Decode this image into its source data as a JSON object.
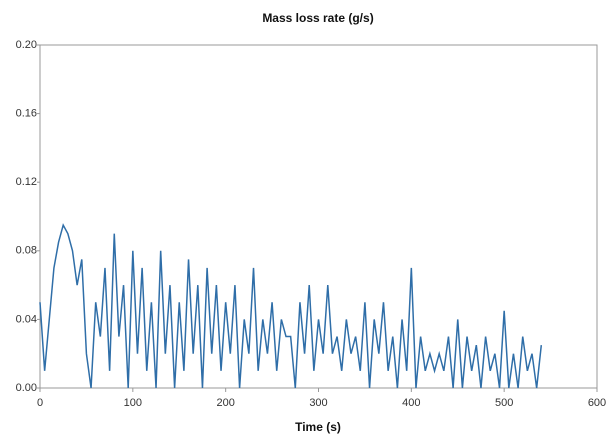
{
  "chart_data": {
    "type": "line",
    "title": "Mass loss rate (g/s)",
    "xlabel": "Time (s)",
    "x": [
      0,
      5,
      10,
      15,
      20,
      25,
      30,
      35,
      40,
      45,
      50,
      55,
      60,
      65,
      70,
      75,
      80,
      85,
      90,
      95,
      100,
      105,
      110,
      115,
      120,
      125,
      130,
      135,
      140,
      145,
      150,
      155,
      160,
      165,
      170,
      175,
      180,
      185,
      190,
      195,
      200,
      205,
      210,
      215,
      220,
      225,
      230,
      235,
      240,
      245,
      250,
      255,
      260,
      265,
      270,
      275,
      280,
      285,
      290,
      295,
      300,
      305,
      310,
      315,
      320,
      325,
      330,
      335,
      340,
      345,
      350,
      355,
      360,
      365,
      370,
      375,
      380,
      385,
      390,
      395,
      400,
      405,
      410,
      415,
      420,
      425,
      430,
      435,
      440,
      445,
      450,
      455,
      460,
      465,
      470,
      475,
      480,
      485,
      490,
      495,
      500,
      505,
      510,
      515,
      520,
      525,
      530,
      535,
      540
    ],
    "series": [
      {
        "name": "Mass loss rate",
        "color": "#2f6ea8",
        "values": [
          0.05,
          0.01,
          0.04,
          0.07,
          0.085,
          0.095,
          0.09,
          0.08,
          0.06,
          0.075,
          0.02,
          0.0,
          0.05,
          0.03,
          0.07,
          0.01,
          0.09,
          0.03,
          0.06,
          0.0,
          0.08,
          0.02,
          0.07,
          0.01,
          0.05,
          0.0,
          0.08,
          0.02,
          0.06,
          0.0,
          0.05,
          0.01,
          0.075,
          0.02,
          0.06,
          0.0,
          0.07,
          0.02,
          0.06,
          0.01,
          0.05,
          0.02,
          0.06,
          0.0,
          0.04,
          0.02,
          0.07,
          0.01,
          0.04,
          0.02,
          0.05,
          0.01,
          0.04,
          0.03,
          0.03,
          0.0,
          0.05,
          0.02,
          0.06,
          0.01,
          0.04,
          0.02,
          0.06,
          0.02,
          0.03,
          0.01,
          0.04,
          0.02,
          0.03,
          0.01,
          0.05,
          0.0,
          0.04,
          0.02,
          0.05,
          0.01,
          0.03,
          0.0,
          0.04,
          0.01,
          0.07,
          0.0,
          0.03,
          0.01,
          0.02,
          0.01,
          0.02,
          0.01,
          0.03,
          0.0,
          0.04,
          0.0,
          0.03,
          0.01,
          0.025,
          0.0,
          0.03,
          0.01,
          0.02,
          0.0,
          0.045,
          0.0,
          0.02,
          0.0,
          0.03,
          0.01,
          0.02,
          0.0,
          0.025
        ]
      }
    ],
    "xlim": [
      0,
      600
    ],
    "xticks": [
      0,
      100,
      200,
      300,
      400,
      500,
      600
    ],
    "ylim": [
      0,
      0.2
    ],
    "yticks": [
      {
        "value": 0,
        "label": "0.00"
      },
      {
        "value": 0.04,
        "label": "0.04"
      },
      {
        "value": 0.08,
        "label": "0.08"
      },
      {
        "value": 0.12,
        "label": "0.12"
      },
      {
        "value": 0.16,
        "label": "0.16"
      },
      {
        "value": 0.2,
        "label": "0.20"
      }
    ]
  }
}
